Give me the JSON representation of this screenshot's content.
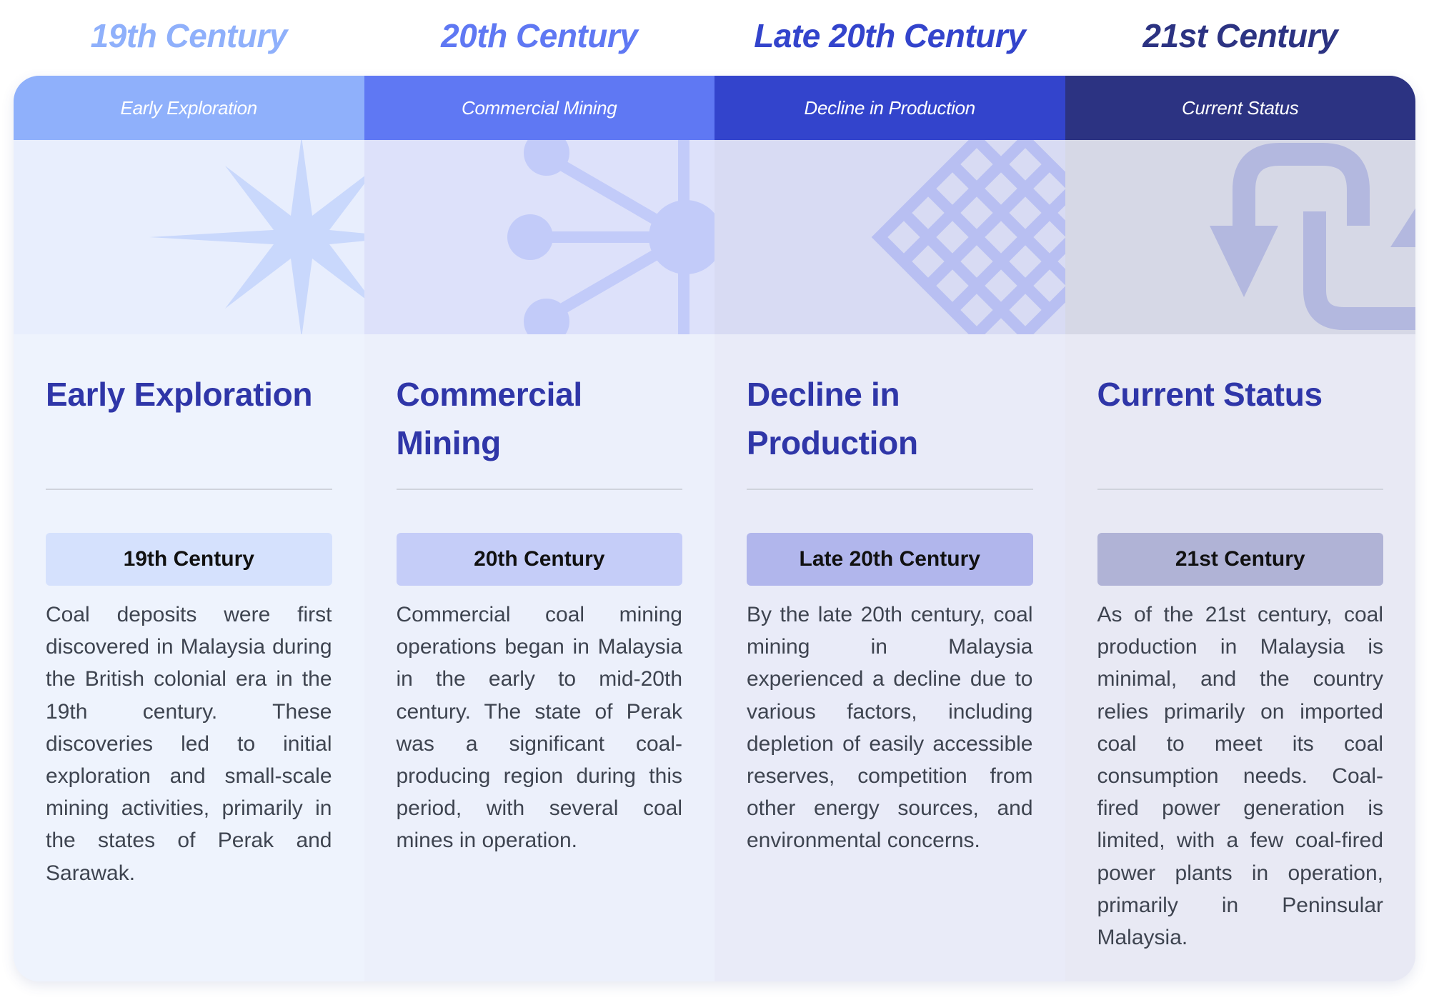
{
  "columns": [
    {
      "era": "19th Century",
      "header": "Early Exploration",
      "title": "Early Exploration",
      "badge": "19th Century",
      "description": "Coal deposits were first discovered in Malaysia during the British colonial era in the 19th century. These discoveries led to initial exploration and small-scale mining activities, primarily in the states of Perak and Sarawak.",
      "icon": "star-burst-icon",
      "colors": {
        "era": "#8fb0fb",
        "header": "#8fb0fb",
        "deco": "#e8eefd",
        "body": "#eef3fd",
        "badge": "#d5e1fd",
        "motif": "#c9d8fc"
      }
    },
    {
      "era": "20th Century",
      "header": "Commercial Mining",
      "title": "Commercial Mining",
      "badge": "20th Century",
      "description": "Commercial coal mining operations began in Malaysia in the early to mid-20th century. The state of Perak was a significant coal-producing region during this period, with several coal mines in operation.",
      "icon": "network-hub-icon",
      "colors": {
        "era": "#5f78f3",
        "header": "#5f78f3",
        "deco": "#dde1fa",
        "body": "#ecf0fb",
        "badge": "#c5cdf8",
        "motif": "#c2cbf9"
      }
    },
    {
      "era": "Late 20th Century",
      "header": "Decline in Production",
      "title": "Decline in Production",
      "badge": "Late 20th Century",
      "description": "By the late 20th century, coal mining in Malaysia experienced a decline due to various factors, including depletion of easily accessible reserves, competition from other energy sources, and environmental concerns.",
      "icon": "grid-lattice-icon",
      "colors": {
        "era": "#3344cc",
        "header": "#3344cc",
        "deco": "#d8dbf3",
        "body": "#e9ebf8",
        "badge": "#b1b6ec",
        "motif": "#b8bff2"
      }
    },
    {
      "era": "21st Century",
      "header": "Current Status",
      "title": "Current Status",
      "badge": "21st Century",
      "description": "As of the 21st century, coal production in Malaysia is minimal, and the country relies primarily on imported coal to meet its coal consumption needs. Coal-fired power generation is limited, with a few coal-fired power plants in operation, primarily in Peninsular Malaysia.",
      "icon": "loop-arrow-icon",
      "colors": {
        "era": "#2c3382",
        "header": "#2c3382",
        "deco": "#d6d8e6",
        "body": "#e8e9f4",
        "badge": "#b0b3d6",
        "motif": "#b3b8df"
      }
    }
  ]
}
